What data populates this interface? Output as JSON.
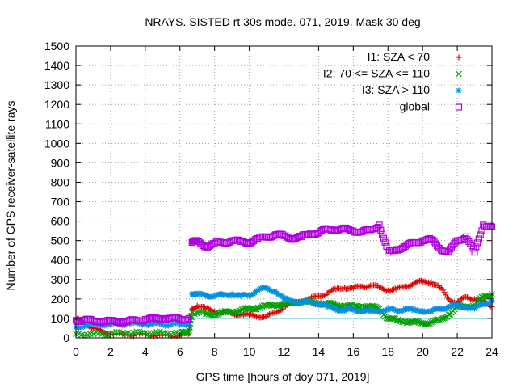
{
  "chart_data": {
    "type": "scatter",
    "title": "NRAYS. SISTED rt 30s mode. 071, 2019. Mask 30 deg",
    "xlabel": "GPS time [hours of doy 071, 2019]",
    "ylabel": "Number of GPS receiver-satellite rays",
    "xlim": [
      0,
      24
    ],
    "ylim": [
      0,
      1500
    ],
    "xticks": [
      0,
      2,
      4,
      6,
      8,
      10,
      12,
      14,
      16,
      18,
      20,
      22,
      24
    ],
    "yticks": [
      0,
      100,
      200,
      300,
      400,
      500,
      600,
      700,
      800,
      900,
      1000,
      1100,
      1200,
      1300,
      1400,
      1500
    ],
    "grid": true,
    "legend_position": "top-right",
    "reference_line": {
      "y": 100,
      "color": "#00c0c0"
    },
    "series": [
      {
        "name": "I1: SZA < 70",
        "marker": "plus",
        "color": "#e00000",
        "points": [
          [
            0.0,
            95
          ],
          [
            0.5,
            80
          ],
          [
            1.0,
            50
          ],
          [
            1.5,
            30
          ],
          [
            2.0,
            20
          ],
          [
            3.0,
            15
          ],
          [
            4.0,
            15
          ],
          [
            5.0,
            12
          ],
          [
            6.0,
            12
          ],
          [
            6.5,
            20
          ],
          [
            6.7,
            150
          ],
          [
            7.0,
            165
          ],
          [
            7.5,
            150
          ],
          [
            8.0,
            135
          ],
          [
            8.5,
            130
          ],
          [
            9.0,
            125
          ],
          [
            9.5,
            120
          ],
          [
            10.0,
            118
          ],
          [
            10.5,
            112
          ],
          [
            11.0,
            108
          ],
          [
            11.5,
            130
          ],
          [
            12.0,
            160
          ],
          [
            12.5,
            180
          ],
          [
            13.0,
            190
          ],
          [
            13.5,
            200
          ],
          [
            14.0,
            215
          ],
          [
            14.5,
            230
          ],
          [
            15.0,
            250
          ],
          [
            15.5,
            258
          ],
          [
            16.0,
            255
          ],
          [
            16.5,
            265
          ],
          [
            17.0,
            270
          ],
          [
            17.5,
            260
          ],
          [
            18.0,
            245
          ],
          [
            18.5,
            250
          ],
          [
            19.0,
            265
          ],
          [
            19.5,
            280
          ],
          [
            20.0,
            290
          ],
          [
            20.5,
            285
          ],
          [
            21.0,
            260
          ],
          [
            21.5,
            200
          ],
          [
            22.0,
            180
          ],
          [
            22.5,
            210
          ],
          [
            23.0,
            200
          ],
          [
            23.5,
            185
          ],
          [
            24.0,
            160
          ]
        ]
      },
      {
        "name": "I2: 70 <= SZA <= 110",
        "marker": "cross",
        "color": "#00a000",
        "points": [
          [
            0.0,
            20
          ],
          [
            1.0,
            20
          ],
          [
            2.0,
            22
          ],
          [
            3.0,
            25
          ],
          [
            4.0,
            25
          ],
          [
            5.0,
            25
          ],
          [
            6.0,
            25
          ],
          [
            6.5,
            25
          ],
          [
            6.7,
            130
          ],
          [
            7.5,
            125
          ],
          [
            8.0,
            120
          ],
          [
            8.5,
            130
          ],
          [
            9.0,
            135
          ],
          [
            9.5,
            140
          ],
          [
            10.0,
            150
          ],
          [
            10.5,
            155
          ],
          [
            11.0,
            165
          ],
          [
            11.5,
            170
          ],
          [
            12.0,
            175
          ],
          [
            12.5,
            180
          ],
          [
            13.0,
            185
          ],
          [
            13.5,
            185
          ],
          [
            14.0,
            180
          ],
          [
            14.5,
            175
          ],
          [
            15.0,
            170
          ],
          [
            15.5,
            165
          ],
          [
            16.0,
            160
          ],
          [
            16.5,
            165
          ],
          [
            17.0,
            160
          ],
          [
            17.5,
            150
          ],
          [
            18.0,
            100
          ],
          [
            18.5,
            90
          ],
          [
            19.0,
            85
          ],
          [
            19.5,
            80
          ],
          [
            20.0,
            75
          ],
          [
            20.5,
            80
          ],
          [
            21.0,
            90
          ],
          [
            21.5,
            120
          ],
          [
            22.0,
            160
          ],
          [
            22.5,
            160
          ],
          [
            23.0,
            170
          ],
          [
            23.5,
            210
          ],
          [
            24.0,
            225
          ]
        ]
      },
      {
        "name": "I3: SZA > 110",
        "marker": "star",
        "color": "#0090e0",
        "points": [
          [
            0.0,
            55
          ],
          [
            1.0,
            70
          ],
          [
            2.0,
            68
          ],
          [
            3.0,
            72
          ],
          [
            4.0,
            70
          ],
          [
            5.0,
            68
          ],
          [
            6.0,
            70
          ],
          [
            6.5,
            72
          ],
          [
            6.7,
            225
          ],
          [
            7.0,
            222
          ],
          [
            7.5,
            220
          ],
          [
            8.0,
            215
          ],
          [
            8.5,
            220
          ],
          [
            9.0,
            225
          ],
          [
            9.5,
            215
          ],
          [
            10.0,
            220
          ],
          [
            10.5,
            245
          ],
          [
            11.0,
            255
          ],
          [
            11.5,
            240
          ],
          [
            12.0,
            200
          ],
          [
            12.5,
            190
          ],
          [
            13.0,
            180
          ],
          [
            13.5,
            185
          ],
          [
            14.0,
            175
          ],
          [
            14.5,
            160
          ],
          [
            15.0,
            150
          ],
          [
            15.5,
            140
          ],
          [
            16.0,
            145
          ],
          [
            16.5,
            140
          ],
          [
            17.0,
            135
          ],
          [
            17.5,
            140
          ],
          [
            18.0,
            145
          ],
          [
            18.5,
            140
          ],
          [
            19.0,
            150
          ],
          [
            19.5,
            140
          ],
          [
            20.0,
            140
          ],
          [
            20.5,
            135
          ],
          [
            21.0,
            150
          ],
          [
            21.5,
            160
          ],
          [
            22.0,
            165
          ],
          [
            22.5,
            160
          ],
          [
            23.0,
            150
          ],
          [
            23.5,
            175
          ],
          [
            24.0,
            190
          ]
        ]
      },
      {
        "name": "global",
        "marker": "square",
        "color": "#b000e0",
        "points": [
          [
            0.0,
            90
          ],
          [
            0.5,
            92
          ],
          [
            1.0,
            88
          ],
          [
            1.5,
            85
          ],
          [
            2.0,
            85
          ],
          [
            2.5,
            83
          ],
          [
            3.0,
            85
          ],
          [
            3.5,
            90
          ],
          [
            4.0,
            95
          ],
          [
            4.5,
            98
          ],
          [
            5.0,
            100
          ],
          [
            5.5,
            100
          ],
          [
            6.0,
            98
          ],
          [
            6.5,
            100
          ],
          [
            6.7,
            490
          ],
          [
            7.0,
            495
          ],
          [
            7.5,
            470
          ],
          [
            8.0,
            485
          ],
          [
            8.5,
            490
          ],
          [
            9.0,
            500
          ],
          [
            9.5,
            495
          ],
          [
            10.0,
            490
          ],
          [
            10.5,
            510
          ],
          [
            11.0,
            520
          ],
          [
            11.5,
            530
          ],
          [
            12.0,
            525
          ],
          [
            12.5,
            510
          ],
          [
            13.0,
            520
          ],
          [
            13.5,
            535
          ],
          [
            14.0,
            540
          ],
          [
            14.5,
            560
          ],
          [
            15.0,
            555
          ],
          [
            15.5,
            560
          ],
          [
            16.0,
            550
          ],
          [
            16.5,
            545
          ],
          [
            17.0,
            555
          ],
          [
            17.5,
            580
          ],
          [
            18.0,
            440
          ],
          [
            18.5,
            455
          ],
          [
            19.0,
            470
          ],
          [
            19.5,
            490
          ],
          [
            20.0,
            500
          ],
          [
            20.5,
            505
          ],
          [
            21.0,
            460
          ],
          [
            21.5,
            440
          ],
          [
            22.0,
            500
          ],
          [
            22.5,
            520
          ],
          [
            23.0,
            440
          ],
          [
            23.5,
            580
          ],
          [
            24.0,
            570
          ]
        ]
      }
    ]
  }
}
